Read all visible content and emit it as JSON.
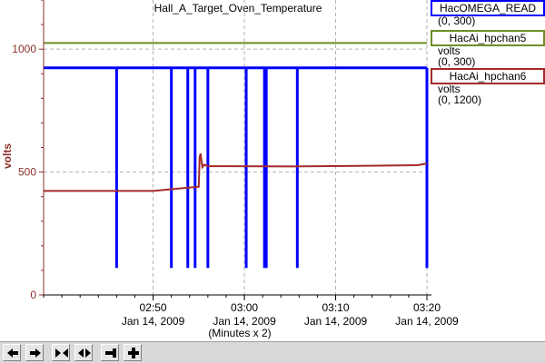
{
  "chart_data": {
    "type": "line",
    "title": "Hall_A_Target_Oven_Temperature",
    "ylabel": "volts",
    "ylim": [
      0,
      1200
    ],
    "yticks": [
      0,
      500,
      1000
    ],
    "xlim": [
      "02:38",
      "03:20"
    ],
    "xticks": [
      {
        "time": "02:50",
        "date": "Jan 14, 2009"
      },
      {
        "time": "03:00",
        "date": "Jan 14, 2009"
      },
      {
        "time": "03:10",
        "date": "Jan 14, 2009"
      },
      {
        "time": "03:20",
        "date": "Jan 14, 2009"
      }
    ],
    "xsubtitle": "(Minutes x 2)",
    "grid": true,
    "legend_position": "right",
    "series": [
      {
        "name": "HacOMEGA_READ",
        "unit": "volts",
        "range": "(0, 300)",
        "color": "#0000ff",
        "baseline": 924,
        "dropouts_value": 110,
        "dropouts_at": [
          "02:46",
          "02:52",
          "02:53.8",
          "02:54.6",
          "02:56",
          "03:00.2",
          "03:02.2",
          "03:02.4",
          "03:05.8",
          "03:20"
        ]
      },
      {
        "name": "HacAi_hpchan5",
        "unit": "volts",
        "range": "(0, 300)",
        "color": "#6b8e23",
        "points": [
          [
            "02:38",
            1025
          ],
          [
            "03:20",
            1025
          ]
        ]
      },
      {
        "name": "HacAi_hpchan6",
        "unit": "volts",
        "range": "(0, 1200)",
        "color": "#a52a2a",
        "points": [
          [
            "02:38",
            423
          ],
          [
            "02:50",
            423
          ],
          [
            "02:52",
            430
          ],
          [
            "02:54",
            437
          ],
          [
            "02:55",
            440
          ],
          [
            "02:55.1",
            560
          ],
          [
            "02:55.2",
            575
          ],
          [
            "02:55.4",
            520
          ],
          [
            "02:55.6",
            530
          ],
          [
            "02:56",
            524
          ],
          [
            "03:05",
            523
          ],
          [
            "03:15",
            526
          ],
          [
            "03:19",
            528
          ],
          [
            "03:20",
            535
          ]
        ]
      }
    ]
  },
  "legend": [
    {
      "label": "HacOMEGA_READ",
      "unit": "",
      "range": "(0, 300)",
      "color": "#0000ff"
    },
    {
      "label": "HacAi_hpchan5",
      "unit": "volts",
      "range": "(0, 300)",
      "color": "#6b8e23"
    },
    {
      "label": "HacAi_hpchan6",
      "unit": "volts",
      "range": "(0, 1200)",
      "color": "#a52a2a"
    }
  ],
  "toolbar": {
    "buttons": [
      {
        "name": "scroll-left-button",
        "icon": "arrow-left-icon"
      },
      {
        "name": "scroll-right-button",
        "icon": "arrow-right-icon"
      },
      {
        "name": "zoom-in-time-button",
        "icon": "arrows-inward-icon"
      },
      {
        "name": "zoom-out-time-button",
        "icon": "arrows-outward-icon"
      },
      {
        "name": "zoom-out-button",
        "icon": "minus-icon"
      },
      {
        "name": "zoom-in-button",
        "icon": "plus-icon"
      }
    ]
  }
}
